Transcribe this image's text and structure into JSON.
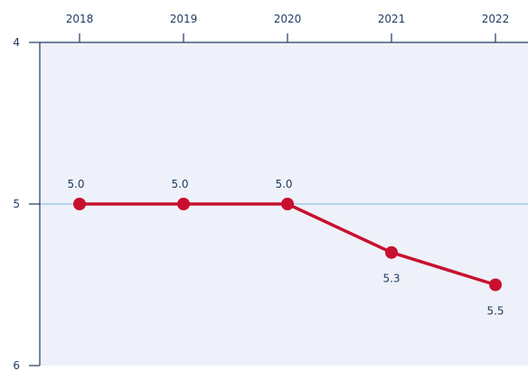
{
  "chart_data": {
    "type": "line",
    "title": "",
    "xlabel": "",
    "ylabel": "",
    "categories": [
      "2018",
      "2019",
      "2020",
      "2021",
      "2022"
    ],
    "series": [
      {
        "values": [
          5.0,
          5.0,
          5.0,
          5.3,
          5.5
        ],
        "labels": [
          "5.0",
          "5.0",
          "5.0",
          "5.3",
          "5.5"
        ],
        "label_position": [
          "above",
          "above",
          "above",
          "below",
          "below"
        ]
      }
    ],
    "y_ticks": [
      "4",
      "5",
      "6"
    ],
    "ylim": [
      4,
      6
    ],
    "y_inverted": true,
    "x_axis_position": "top",
    "grid": "horizontal at 5",
    "legend": "none",
    "colors": {
      "line": "#c8102e",
      "plot_background": "#eef1f9",
      "gridline": "#9fcbe6",
      "text": "#1f3a5f",
      "axis": "#1f3a5f"
    }
  }
}
